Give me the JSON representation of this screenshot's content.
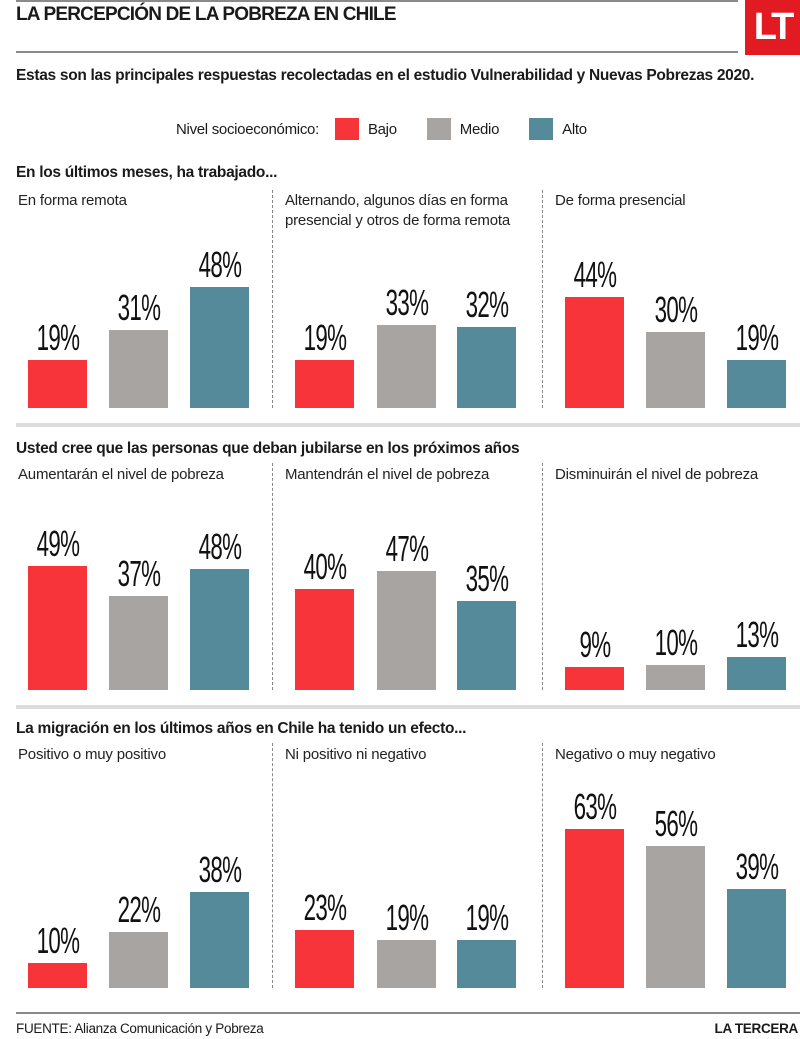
{
  "header": {
    "title": "LA PERCEPCIÓN DE LA POBREZA EN CHILE",
    "logo": "LT",
    "intro": "Estas son las principales respuestas recolectadas en el estudio Vulnerabilidad y Nuevas Pobrezas 2020."
  },
  "legend": {
    "label": "Nivel socioeconómico:",
    "items": [
      {
        "name": "Bajo",
        "color": "#f7343a"
      },
      {
        "name": "Medio",
        "color": "#a8a4a2"
      },
      {
        "name": "Alto",
        "color": "#548a9a"
      }
    ]
  },
  "chart_data": [
    {
      "type": "bar",
      "title": "En los últimos meses, ha trabajado...",
      "series_names": [
        "Bajo",
        "Medio",
        "Alto"
      ],
      "unit": "%",
      "ylim": [
        0,
        65
      ],
      "groups": [
        {
          "label": "En forma remota",
          "values": [
            19,
            31,
            48
          ]
        },
        {
          "label": "Alternando, algunos días en forma presencial y otros de forma remota",
          "values": [
            19,
            33,
            32
          ]
        },
        {
          "label": "De forma presencial",
          "values": [
            44,
            30,
            19
          ]
        }
      ]
    },
    {
      "type": "bar",
      "title": "Usted cree que las personas que deban jubilarse en los próximos años",
      "series_names": [
        "Bajo",
        "Medio",
        "Alto"
      ],
      "unit": "%",
      "ylim": [
        0,
        65
      ],
      "groups": [
        {
          "label": "Aumentarán el nivel de pobreza",
          "values": [
            49,
            37,
            48
          ]
        },
        {
          "label": "Mantendrán el nivel de pobreza",
          "values": [
            40,
            47,
            35
          ]
        },
        {
          "label": "Disminuirán el nivel  de pobreza",
          "values": [
            9,
            10,
            13
          ]
        }
      ]
    },
    {
      "type": "bar",
      "title": "La migración en los últimos años en Chile ha tenido un efecto...",
      "series_names": [
        "Bajo",
        "Medio",
        "Alto"
      ],
      "unit": "%",
      "ylim": [
        0,
        65
      ],
      "groups": [
        {
          "label": "Positivo o muy positivo",
          "values": [
            10,
            22,
            38
          ]
        },
        {
          "label": "Ni positivo ni negativo",
          "values": [
            23,
            19,
            19
          ]
        },
        {
          "label": "Negativo o muy negativo",
          "values": [
            63,
            56,
            39
          ]
        }
      ]
    }
  ],
  "footer": {
    "source": "FUENTE: Alianza Comunicación y Pobreza",
    "brand": "LA TERCERA"
  }
}
